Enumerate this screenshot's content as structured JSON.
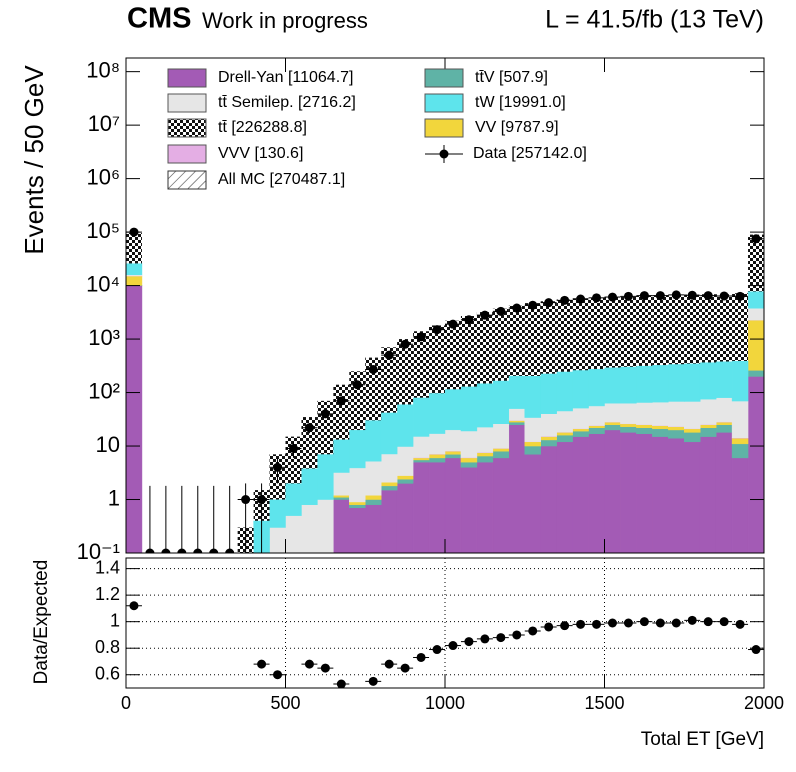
{
  "chart_data": [
    {
      "type": "histogram",
      "cms_label": "CMS",
      "status": "Work in progress",
      "lumi": "L = 41.5/fb (13 TeV)",
      "y_label": "Events / 50 GeV",
      "log_y": true,
      "bins": [
        0,
        50,
        100,
        150,
        200,
        250,
        300,
        350,
        400,
        450,
        500,
        550,
        600,
        650,
        700,
        750,
        800,
        850,
        900,
        950,
        1000,
        1050,
        1100,
        1150,
        1200,
        1250,
        1300,
        1350,
        1400,
        1450,
        1500,
        1550,
        1600,
        1650,
        1700,
        1750,
        1800,
        1850,
        1900,
        1950,
        2000
      ],
      "xlim": [
        0,
        2000
      ],
      "xticks": [
        0,
        500,
        1000,
        1500,
        2000
      ],
      "ylim": [
        0.1,
        180000000
      ],
      "yticks": [
        {
          "value": 0.1,
          "label": "10⁻¹"
        },
        1,
        10,
        {
          "value": 100,
          "label": "10²"
        },
        {
          "value": 1000,
          "label": "10³"
        },
        {
          "value": 10000,
          "label": "10⁴"
        },
        {
          "value": 100000,
          "label": "10⁵"
        },
        {
          "value": 1000000,
          "label": "10⁶"
        },
        {
          "value": 10000000,
          "label": "10⁷"
        },
        {
          "value": 100000000,
          "label": "10⁸"
        }
      ],
      "series": [
        {
          "name": "Drell-Yan [11064.7]",
          "color": "#a35bb5",
          "values": [
            10000,
            0,
            0,
            0,
            0,
            0,
            0,
            0,
            0,
            0,
            0,
            0,
            0,
            1,
            0.7,
            0.8,
            1.5,
            2,
            5,
            5,
            6,
            4,
            5,
            6,
            25,
            7,
            10,
            12,
            15,
            17,
            20,
            18,
            17,
            15,
            14,
            12,
            15,
            18,
            6,
            200
          ]
        },
        {
          "name": "tt̄V [507.9]",
          "color": "#5fb3a6",
          "values": [
            100,
            0,
            0,
            0,
            0,
            0,
            0,
            0,
            0,
            0,
            0,
            0,
            0,
            0.1,
            0.1,
            0.2,
            0.3,
            0.4,
            0.5,
            1,
            1,
            1,
            1.5,
            2,
            3,
            3,
            3,
            4,
            4,
            5,
            5,
            5,
            5,
            6,
            6,
            6,
            7,
            7,
            5,
            60
          ]
        },
        {
          "name": "VV [9787.9]",
          "color": "#f2d63c",
          "values": [
            5000,
            0,
            0,
            0,
            0,
            0,
            0,
            0,
            0,
            0,
            0,
            0,
            0,
            0.1,
            0.1,
            0.2,
            0.3,
            0.4,
            0.5,
            1,
            1,
            1,
            1,
            1,
            2,
            2,
            2,
            2,
            2,
            2,
            3,
            3,
            3,
            3,
            3,
            3,
            3,
            3,
            3,
            2000
          ]
        },
        {
          "name": "VVV [130.6]",
          "color": "#e4aee4",
          "values": [
            50,
            0,
            0,
            0,
            0,
            0,
            0,
            0,
            0,
            0,
            0,
            0,
            0,
            0,
            0,
            0,
            0,
            0,
            0.1,
            0.1,
            0.1,
            0.1,
            0.1,
            0.1,
            0.1,
            0.1,
            0.2,
            0.2,
            0.2,
            0.2,
            0.2,
            0.2,
            0.2,
            0.2,
            0.2,
            0.2,
            0.3,
            0.3,
            0.3,
            10
          ]
        },
        {
          "name": "tt̄ Semilep. [2716.2]",
          "color": "#e6e6e6",
          "values": [
            800,
            0,
            0,
            0,
            0,
            0,
            0,
            0,
            0.1,
            0.3,
            0.5,
            0.8,
            1,
            2,
            3,
            4,
            5,
            7,
            9,
            10,
            12,
            13,
            15,
            17,
            20,
            22,
            25,
            27,
            30,
            32,
            35,
            37,
            40,
            42,
            45,
            47,
            50,
            52,
            55,
            1500
          ]
        },
        {
          "name": "tW [19991.0]",
          "color": "#5ee4ec",
          "values": [
            10000,
            0,
            0,
            0,
            0,
            0,
            0,
            0.1,
            0.3,
            0.7,
            1.5,
            3,
            6,
            10,
            16,
            25,
            35,
            50,
            65,
            80,
            95,
            110,
            125,
            140,
            155,
            170,
            185,
            200,
            210,
            220,
            230,
            240,
            250,
            260,
            270,
            280,
            290,
            300,
            320,
            4000
          ]
        },
        {
          "name": "tt̄ [226288.8]",
          "color": "#222222",
          "fill_style": "checkerboard",
          "values": [
            70000,
            0,
            0,
            0,
            0,
            0,
            0,
            0.2,
            1.1,
            6,
            13,
            31,
            63,
            127,
            230,
            420,
            660,
            940,
            1320,
            1700,
            2090,
            2570,
            3050,
            3530,
            4000,
            4500,
            4870,
            5250,
            5540,
            5720,
            5910,
            6000,
            6180,
            6270,
            6360,
            6450,
            6530,
            6520,
            6800,
            82000
          ]
        }
      ],
      "mc_total_label": "All MC [270487.1]",
      "data": {
        "name": "Data [257142.0]",
        "color": "#000000",
        "values": [
          100000,
          0,
          0,
          0,
          0,
          0,
          0,
          1,
          1,
          4,
          9,
          22,
          40,
          70,
          140,
          270,
          500,
          800,
          1100,
          1500,
          1900,
          2300,
          2800,
          3300,
          3800,
          4300,
          4800,
          5300,
          5600,
          5900,
          6100,
          6300,
          6500,
          6500,
          6700,
          6600,
          6500,
          6400,
          6300,
          75000
        ],
        "yerr": [
          316,
          1.8,
          1.8,
          1.8,
          1.8,
          1.8,
          1.8,
          1,
          1,
          2,
          3,
          4.7,
          6.3,
          8.4,
          11.8,
          16.4,
          22,
          28,
          33,
          39,
          44,
          48,
          53,
          57,
          62,
          66,
          69,
          73,
          75,
          77,
          78,
          79,
          81,
          81,
          82,
          81,
          81,
          80,
          79,
          274
        ]
      }
    },
    {
      "type": "scatter",
      "x_label": "Total ET [GeV]",
      "y_label": "Data/Expected",
      "xlim": [
        0,
        2000
      ],
      "xticks": [
        0,
        500,
        1000,
        1500,
        2000
      ],
      "ylim": [
        0.5,
        1.48
      ],
      "yticks": [
        0.6,
        0.8,
        1,
        1.2,
        1.4
      ],
      "grid": true,
      "color": "#000000",
      "values": [
        1.12,
        null,
        null,
        null,
        null,
        null,
        null,
        null,
        0.68,
        0.6,
        null,
        0.68,
        0.65,
        0.53,
        null,
        0.55,
        0.68,
        0.65,
        0.73,
        0.79,
        0.82,
        0.85,
        0.87,
        0.88,
        0.9,
        0.93,
        0.96,
        0.97,
        0.98,
        0.98,
        0.99,
        0.99,
        1.0,
        0.99,
        0.99,
        1.01,
        1.0,
        1.0,
        0.98,
        0.79
      ]
    }
  ]
}
